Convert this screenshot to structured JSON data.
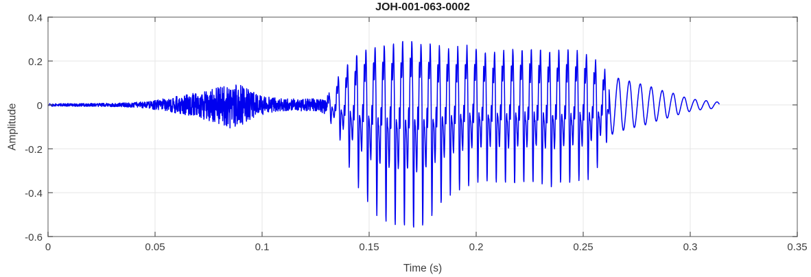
{
  "figure": {
    "kind": "matlab-style waveform figure",
    "background": "#ffffff"
  },
  "chart_data": {
    "type": "line",
    "title": "JOH-001-063-0002",
    "xlabel": "Time (s)",
    "ylabel": "Amplitude",
    "xlim": [
      0,
      0.35
    ],
    "ylim": [
      -0.6,
      0.4
    ],
    "grid": true,
    "legend": null,
    "line_color": "#0000EF",
    "axis_color": "#8f8f8f",
    "tick_color": "#545454",
    "grid_color": "#e6e6e6",
    "label_color": "#3d3d3d",
    "x_ticks": {
      "values": [
        0,
        0.05,
        0.1,
        0.15,
        0.2,
        0.25,
        0.3,
        0.35
      ],
      "labels": [
        "0",
        "0.05",
        "0.1",
        "0.15",
        "0.2",
        "0.25",
        "0.3",
        "0.35"
      ]
    },
    "y_ticks": {
      "values": [
        -0.6,
        -0.4,
        -0.2,
        0,
        0.2,
        0.4
      ],
      "labels": [
        "-0.6",
        "-0.4",
        "-0.2",
        "0",
        "0.2",
        "0.4"
      ]
    },
    "signal": {
      "description": "speech waveform: low noise floor, small fricative bump peaking ~±0.1 near t=0.085, quiet gap, strong voiced burst t≈0.13–0.26 (upper env ~+0.29, lower env to −0.57 near t=0.17), decaying ~195 Hz tail ending t≈0.313",
      "duration_s": 0.3135,
      "sample_rate_hz": 10000,
      "voiced_f0_hz": 233,
      "voiced_start_s": 0.1275,
      "voiced_end_s": 0.262,
      "tail_freq_hz": 195,
      "envelope_t_up_low": [
        [
          0.0,
          0.006,
          -0.006
        ],
        [
          0.02,
          0.007,
          -0.007
        ],
        [
          0.035,
          0.009,
          -0.009
        ],
        [
          0.045,
          0.015,
          -0.015
        ],
        [
          0.05,
          0.022,
          -0.022
        ],
        [
          0.055,
          0.03,
          -0.03
        ],
        [
          0.062,
          0.042,
          -0.042
        ],
        [
          0.07,
          0.058,
          -0.058
        ],
        [
          0.078,
          0.075,
          -0.08
        ],
        [
          0.085,
          0.098,
          -0.108
        ],
        [
          0.09,
          0.092,
          -0.095
        ],
        [
          0.094,
          0.068,
          -0.07
        ],
        [
          0.098,
          0.05,
          -0.052
        ],
        [
          0.103,
          0.036,
          -0.038
        ],
        [
          0.108,
          0.03,
          -0.03
        ],
        [
          0.118,
          0.028,
          -0.028
        ],
        [
          0.127,
          0.028,
          -0.028
        ],
        [
          0.131,
          0.065,
          -0.075
        ],
        [
          0.136,
          0.13,
          -0.15
        ],
        [
          0.141,
          0.205,
          -0.29
        ],
        [
          0.147,
          0.25,
          -0.42
        ],
        [
          0.155,
          0.27,
          -0.52
        ],
        [
          0.162,
          0.28,
          -0.55
        ],
        [
          0.17,
          0.29,
          -0.57
        ],
        [
          0.176,
          0.275,
          -0.55
        ],
        [
          0.182,
          0.265,
          -0.47
        ],
        [
          0.188,
          0.255,
          -0.405
        ],
        [
          0.195,
          0.265,
          -0.375
        ],
        [
          0.205,
          0.24,
          -0.35
        ],
        [
          0.215,
          0.25,
          -0.365
        ],
        [
          0.225,
          0.255,
          -0.35
        ],
        [
          0.235,
          0.245,
          -0.37
        ],
        [
          0.245,
          0.25,
          -0.35
        ],
        [
          0.252,
          0.23,
          -0.34
        ],
        [
          0.258,
          0.185,
          -0.27
        ],
        [
          0.262,
          0.135,
          -0.14
        ],
        [
          0.268,
          0.118,
          -0.118
        ],
        [
          0.274,
          0.103,
          -0.103
        ],
        [
          0.28,
          0.088,
          -0.088
        ],
        [
          0.286,
          0.068,
          -0.068
        ],
        [
          0.292,
          0.053,
          -0.053
        ],
        [
          0.297,
          0.036,
          -0.036
        ],
        [
          0.302,
          0.025,
          -0.025
        ],
        [
          0.307,
          0.02,
          -0.02
        ],
        [
          0.311,
          0.016,
          -0.016
        ],
        [
          0.3135,
          0.012,
          -0.012
        ]
      ]
    }
  }
}
